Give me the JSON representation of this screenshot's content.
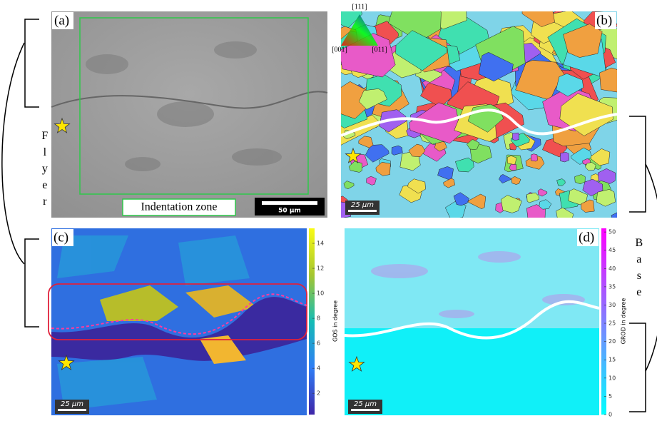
{
  "panels": {
    "a": {
      "label": "(a)",
      "scale_bar": "50 µm",
      "annotation": "Indentation zone"
    },
    "b": {
      "label": "(b)",
      "scale_bar": "25 μm",
      "ipf_labels": {
        "top": "[111]",
        "left": "[001]",
        "right": "[011]"
      }
    },
    "c": {
      "label": "(c)",
      "scale_bar": "25 μm",
      "colorbar": {
        "label": "GOS in degree",
        "lim": [
          0.3,
          15.2
        ],
        "ticks": [
          2,
          4,
          6,
          8,
          10,
          12,
          14
        ]
      }
    },
    "d": {
      "label": "(d)",
      "scale_bar": "25 μm",
      "colorbar": {
        "label": "GROD in degree",
        "lim": [
          0,
          51
        ],
        "ticks": [
          0,
          5,
          10,
          15,
          20,
          25,
          30,
          35,
          40,
          45,
          50
        ]
      }
    }
  },
  "side_labels": {
    "left": "Flyer",
    "right": "Base"
  }
}
